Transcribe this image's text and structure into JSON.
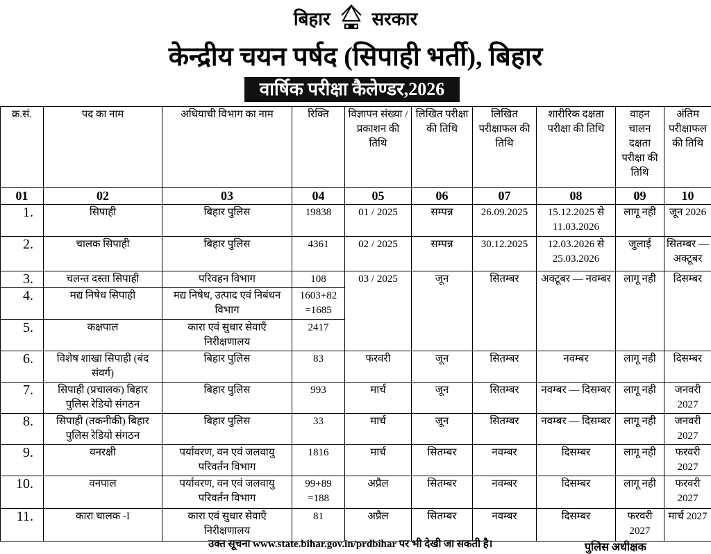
{
  "header": {
    "gov_left": "बिहार",
    "gov_right": "सरकार",
    "title": "केन्द्रीय चयन पर्षद (सिपाही भर्ती), बिहार",
    "calendar": "वार्षिक परीक्षा कैलेण्डर,2026"
  },
  "columns": [
    "क्र.सं.",
    "पद का नाम",
    "अधियाची विभाग का नाम",
    "रिक्ति",
    "विज्ञापन संख्या / प्रकाशन की तिथि",
    "लिखित परीक्षा की तिथि",
    "लिखित परीक्षाफल की तिथि",
    "शारीरिक दक्षता परीक्षा की तिथि",
    "वाहन चालन दक्षता परीक्षा की तिथि",
    "अंतिम परीक्षाफल की तिथि"
  ],
  "column_numbers": [
    "01",
    "02",
    "03",
    "04",
    "05",
    "06",
    "07",
    "08",
    "09",
    "10"
  ],
  "rows": [
    {
      "sn": "1.",
      "post": "सिपाही",
      "dept": "बिहार पुलिस",
      "vac": "19838",
      "adv": "01 / 2025",
      "written": "सम्पन्न",
      "result": "26.09.2025",
      "pet": "15.12.2025 से 11.03.2026",
      "driving": "लागू नही",
      "final": "जून 2026"
    },
    {
      "sn": "2.",
      "post": "चालक सिपाही",
      "dept": "बिहार पुलिस",
      "vac": "4361",
      "adv": "02 / 2025",
      "written": "सम्पन्न",
      "result": "30.12.2025",
      "pet": "12.03.2026 से 25.03.2026",
      "driving": "जुलाई",
      "final": "सितम्बर — अक्टूबर"
    },
    {
      "sn": "3.",
      "post": "चलन्त दस्ता सिपाही",
      "dept": "परिवहन विभाग",
      "vac": "108",
      "adv": "03 / 2025",
      "written": "जून",
      "result": "सितम्बर",
      "pet": "अक्टूबर — नवम्बर",
      "driving": "लागू नही",
      "final": "दिसम्बर"
    },
    {
      "sn": "4.",
      "post": "मद्य निषेध सिपाही",
      "dept": "मद्य निषेध, उत्पाद एवं निबंधन विभाग",
      "vac": "1603+82 =1685"
    },
    {
      "sn": "5.",
      "post": "कक्षपाल",
      "dept": "कारा एवं सुधार सेवाएँ निरीक्षणालय",
      "vac": "2417"
    },
    {
      "sn": "6.",
      "post": "विशेष शाखा सिपाही (बंद संवर्ग)",
      "dept": "बिहार पुलिस",
      "vac": "83",
      "adv": "फरवरी",
      "written": "जून",
      "result": "सितम्बर",
      "pet": "नवम्बर",
      "driving": "लागू नही",
      "final": "दिसम्बर"
    },
    {
      "sn": "7.",
      "post": "सिपाही (प्रचालक) बिहार पुलिस रेडियो संगठन",
      "dept": "बिहार पुलिस",
      "vac": "993",
      "adv": "मार्च",
      "written": "जून",
      "result": "सितम्बर",
      "pet": "नवम्बर — दिसम्बर",
      "driving": "लागू नही",
      "final": "जनवरी 2027"
    },
    {
      "sn": "8.",
      "post": "सिपाही (तकनीकी) बिहार पुलिस रेडियो संगठन",
      "dept": "बिहार पुलिस",
      "vac": "33",
      "adv": "मार्च",
      "written": "जून",
      "result": "सितम्बर",
      "pet": "नवम्बर — दिसम्बर",
      "driving": "लागू नही",
      "final": "जनवरी 2027"
    },
    {
      "sn": "9.",
      "post": "वनरक्षी",
      "dept": "पर्यावरण, वन एवं जलवायु परिवर्तन विभाग",
      "vac": "1816",
      "adv": "मार्च",
      "written": "सितम्बर",
      "result": "नवम्बर",
      "pet": "दिसम्बर",
      "driving": "लागू नही",
      "final": "फरवरी 2027"
    },
    {
      "sn": "10.",
      "post": "वनपाल",
      "dept": "पर्यावरण, वन एवं जलवायु परिवर्तन विभाग",
      "vac": "99+89 =188",
      "adv": "अप्रैल",
      "written": "सितम्बर",
      "result": "नवम्बर",
      "pet": "दिसम्बर",
      "driving": "लागू नही",
      "final": "फरवरी 2027"
    },
    {
      "sn": "11.",
      "post": "कारा चालक -I",
      "dept": "कारा एवं सुधार सेवाएँ निरीक्षणालय",
      "vac": "81",
      "adv": "अप्रैल",
      "written": "सितम्बर",
      "result": "नवम्बर",
      "pet": "दिसम्बर",
      "driving": "फरवरी 2027",
      "final": "मार्च 2027"
    }
  ],
  "footer": {
    "notice": "उक्त सूचना www.state.bihar.gov.in/prdbihar पर भी देखी जा सकती है।",
    "signatory": "पुलिस अधीक्षक"
  }
}
